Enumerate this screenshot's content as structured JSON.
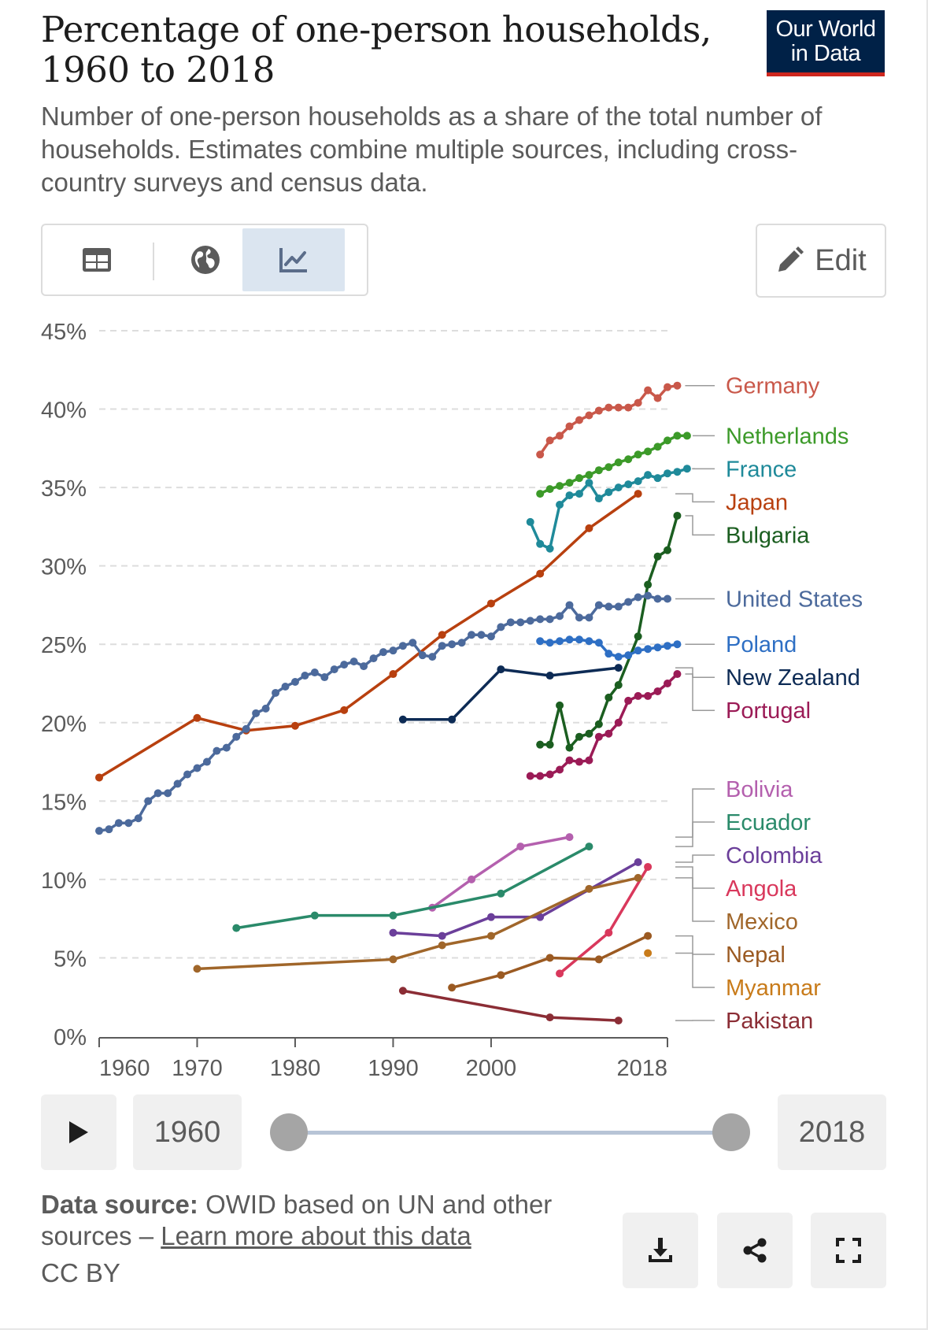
{
  "header": {
    "title": "Percentage of one-person households, 1960 to 2018",
    "subtitle": "Number of one-person households as a share of the total number of households. Estimates combine multiple sources, including cross-country surveys and census data.",
    "logo_line1": "Our World",
    "logo_line2": "in Data"
  },
  "toolbar": {
    "tabs": [
      {
        "name": "table",
        "icon": "table-icon",
        "active": false
      },
      {
        "name": "map",
        "icon": "globe-icon",
        "active": false
      },
      {
        "name": "chart",
        "icon": "line-chart-icon",
        "active": true
      }
    ],
    "edit_label": "Edit"
  },
  "timeline": {
    "start_label": "1960",
    "end_label": "2018",
    "start_year": 1960,
    "end_year": 2018
  },
  "footer": {
    "source_label": "Data source:",
    "source_text": "OWID based on UN and other sources –",
    "learn_more": "Learn more about this data",
    "license": "CC BY"
  },
  "colors": {
    "accent": "#dbe5f0",
    "logo_bg": "#002147",
    "logo_bar": "#ce261e",
    "grid": "#dddddd",
    "axis": "#5b5b5b"
  },
  "chart_data": {
    "type": "line",
    "title": "Percentage of one-person households, 1960 to 2018",
    "xlabel": "",
    "ylabel": "",
    "xlim": [
      1960,
      2018
    ],
    "ylim": [
      0,
      45
    ],
    "x_ticks": [
      1960,
      1970,
      1980,
      1990,
      2000,
      2018
    ],
    "y_ticks": [
      0,
      5,
      10,
      15,
      20,
      25,
      30,
      35,
      40,
      45
    ],
    "y_tick_labels": [
      "0%",
      "5%",
      "10%",
      "15%",
      "20%",
      "25%",
      "30%",
      "35%",
      "40%",
      "45%"
    ],
    "grid": true,
    "legend": "right, labels at line ends",
    "series": [
      {
        "name": "Germany",
        "color": "#c9584a",
        "points": [
          [
            2005,
            37.1
          ],
          [
            2006,
            38.0
          ],
          [
            2007,
            38.3
          ],
          [
            2008,
            38.9
          ],
          [
            2009,
            39.3
          ],
          [
            2010,
            39.6
          ],
          [
            2011,
            39.9
          ],
          [
            2012,
            40.1
          ],
          [
            2013,
            40.1
          ],
          [
            2014,
            40.1
          ],
          [
            2015,
            40.4
          ],
          [
            2016,
            41.2
          ],
          [
            2017,
            40.7
          ],
          [
            2018,
            41.4
          ],
          [
            2019,
            41.5
          ]
        ]
      },
      {
        "name": "Netherlands",
        "color": "#3c9a29",
        "points": [
          [
            2005,
            34.6
          ],
          [
            2006,
            34.9
          ],
          [
            2007,
            35.1
          ],
          [
            2008,
            35.3
          ],
          [
            2009,
            35.6
          ],
          [
            2010,
            35.8
          ],
          [
            2011,
            36.1
          ],
          [
            2012,
            36.3
          ],
          [
            2013,
            36.6
          ],
          [
            2014,
            36.8
          ],
          [
            2015,
            37.1
          ],
          [
            2016,
            37.3
          ],
          [
            2017,
            37.6
          ],
          [
            2018,
            38.0
          ],
          [
            2019,
            38.3
          ],
          [
            2020,
            38.3
          ]
        ]
      },
      {
        "name": "France",
        "color": "#1f8a9a",
        "points": [
          [
            2004,
            32.8
          ],
          [
            2005,
            31.4
          ],
          [
            2006,
            31.1
          ],
          [
            2007,
            33.9
          ],
          [
            2008,
            34.5
          ],
          [
            2009,
            34.6
          ],
          [
            2010,
            35.3
          ],
          [
            2011,
            34.3
          ],
          [
            2012,
            34.7
          ],
          [
            2013,
            35.0
          ],
          [
            2014,
            35.2
          ],
          [
            2015,
            35.4
          ],
          [
            2016,
            35.8
          ],
          [
            2017,
            35.6
          ],
          [
            2018,
            35.9
          ],
          [
            2019,
            36.0
          ],
          [
            2020,
            36.2
          ]
        ]
      },
      {
        "name": "Japan",
        "color": "#b8400f",
        "points": [
          [
            1960,
            16.5
          ],
          [
            1970,
            20.3
          ],
          [
            1975,
            19.5
          ],
          [
            1980,
            19.8
          ],
          [
            1985,
            20.8
          ],
          [
            1990,
            23.1
          ],
          [
            1995,
            25.6
          ],
          [
            2000,
            27.6
          ],
          [
            2005,
            29.5
          ],
          [
            2010,
            32.4
          ],
          [
            2015,
            34.6
          ]
        ]
      },
      {
        "name": "Bulgaria",
        "color": "#1b5e20",
        "points": [
          [
            2005,
            18.6
          ],
          [
            2006,
            18.6
          ],
          [
            2007,
            21.1
          ],
          [
            2008,
            18.4
          ],
          [
            2009,
            19.1
          ],
          [
            2010,
            19.3
          ],
          [
            2011,
            19.9
          ],
          [
            2012,
            21.6
          ],
          [
            2013,
            22.4
          ],
          [
            2015,
            25.5
          ],
          [
            2016,
            28.8
          ],
          [
            2017,
            30.6
          ],
          [
            2018,
            31.0
          ],
          [
            2019,
            33.2
          ]
        ]
      },
      {
        "name": "United States",
        "color": "#4c6a9c",
        "points": [
          [
            1960,
            13.1
          ],
          [
            1961,
            13.2
          ],
          [
            1962,
            13.6
          ],
          [
            1963,
            13.6
          ],
          [
            1964,
            13.9
          ],
          [
            1965,
            15.0
          ],
          [
            1966,
            15.5
          ],
          [
            1967,
            15.5
          ],
          [
            1968,
            16.1
          ],
          [
            1969,
            16.7
          ],
          [
            1970,
            17.1
          ],
          [
            1971,
            17.5
          ],
          [
            1972,
            18.2
          ],
          [
            1973,
            18.4
          ],
          [
            1974,
            19.1
          ],
          [
            1975,
            19.6
          ],
          [
            1976,
            20.6
          ],
          [
            1977,
            20.9
          ],
          [
            1978,
            21.9
          ],
          [
            1979,
            22.3
          ],
          [
            1980,
            22.6
          ],
          [
            1981,
            23.0
          ],
          [
            1982,
            23.2
          ],
          [
            1983,
            22.9
          ],
          [
            1984,
            23.4
          ],
          [
            1985,
            23.7
          ],
          [
            1986,
            23.9
          ],
          [
            1987,
            23.6
          ],
          [
            1988,
            24.1
          ],
          [
            1989,
            24.5
          ],
          [
            1990,
            24.6
          ],
          [
            1991,
            24.9
          ],
          [
            1992,
            25.1
          ],
          [
            1993,
            24.3
          ],
          [
            1994,
            24.2
          ],
          [
            1995,
            24.9
          ],
          [
            1996,
            25.0
          ],
          [
            1997,
            25.1
          ],
          [
            1998,
            25.6
          ],
          [
            1999,
            25.6
          ],
          [
            2000,
            25.5
          ],
          [
            2001,
            26.1
          ],
          [
            2002,
            26.4
          ],
          [
            2003,
            26.4
          ],
          [
            2004,
            26.5
          ],
          [
            2005,
            26.6
          ],
          [
            2006,
            26.6
          ],
          [
            2007,
            26.8
          ],
          [
            2008,
            27.5
          ],
          [
            2009,
            26.7
          ],
          [
            2010,
            26.7
          ],
          [
            2011,
            27.5
          ],
          [
            2012,
            27.4
          ],
          [
            2013,
            27.4
          ],
          [
            2014,
            27.7
          ],
          [
            2015,
            28.0
          ],
          [
            2016,
            28.1
          ],
          [
            2017,
            27.9
          ],
          [
            2018,
            27.9
          ]
        ]
      },
      {
        "name": "Poland",
        "color": "#2e6fc4",
        "points": [
          [
            2005,
            25.2
          ],
          [
            2006,
            25.1
          ],
          [
            2007,
            25.2
          ],
          [
            2008,
            25.3
          ],
          [
            2009,
            25.3
          ],
          [
            2010,
            25.2
          ],
          [
            2011,
            25.1
          ],
          [
            2012,
            24.4
          ],
          [
            2013,
            24.2
          ],
          [
            2014,
            24.3
          ],
          [
            2015,
            24.6
          ],
          [
            2016,
            24.7
          ],
          [
            2017,
            24.8
          ],
          [
            2018,
            24.9
          ],
          [
            2019,
            25.0
          ]
        ]
      },
      {
        "name": "New Zealand",
        "color": "#0d2b55",
        "points": [
          [
            1991,
            20.2
          ],
          [
            1996,
            20.2
          ],
          [
            2001,
            23.4
          ],
          [
            2006,
            23.0
          ],
          [
            2013,
            23.5
          ]
        ]
      },
      {
        "name": "Portugal",
        "color": "#9b1b56",
        "points": [
          [
            2004,
            16.6
          ],
          [
            2005,
            16.6
          ],
          [
            2006,
            16.7
          ],
          [
            2007,
            17.0
          ],
          [
            2008,
            17.6
          ],
          [
            2009,
            17.5
          ],
          [
            2010,
            17.6
          ],
          [
            2011,
            19.1
          ],
          [
            2012,
            19.3
          ],
          [
            2013,
            20.0
          ],
          [
            2014,
            21.4
          ],
          [
            2015,
            21.7
          ],
          [
            2016,
            21.7
          ],
          [
            2017,
            22.0
          ],
          [
            2018,
            22.5
          ],
          [
            2019,
            23.1
          ]
        ]
      },
      {
        "name": "Bolivia",
        "color": "#b460ae",
        "points": [
          [
            1994,
            8.2
          ],
          [
            1998,
            10.0
          ],
          [
            2003,
            12.1
          ],
          [
            2008,
            12.7
          ]
        ]
      },
      {
        "name": "Ecuador",
        "color": "#2a8a6a",
        "points": [
          [
            1974,
            6.9
          ],
          [
            1982,
            7.7
          ],
          [
            1990,
            7.7
          ],
          [
            2001,
            9.1
          ],
          [
            2010,
            12.1
          ]
        ]
      },
      {
        "name": "Colombia",
        "color": "#6b3f9a",
        "points": [
          [
            1990,
            6.6
          ],
          [
            1995,
            6.4
          ],
          [
            2000,
            7.6
          ],
          [
            2005,
            7.6
          ],
          [
            2015,
            11.1
          ]
        ]
      },
      {
        "name": "Angola",
        "color": "#d9385c",
        "points": [
          [
            2007,
            4.0
          ],
          [
            2012,
            6.6
          ],
          [
            2016,
            10.8
          ]
        ]
      },
      {
        "name": "Mexico",
        "color": "#a0662a",
        "points": [
          [
            1970,
            4.3
          ],
          [
            1990,
            4.9
          ],
          [
            1995,
            5.8
          ],
          [
            2000,
            6.4
          ],
          [
            2010,
            9.4
          ],
          [
            2015,
            10.1
          ]
        ]
      },
      {
        "name": "Nepal",
        "color": "#9b5a22",
        "points": [
          [
            1996,
            3.1
          ],
          [
            2001,
            3.9
          ],
          [
            2006,
            5.0
          ],
          [
            2011,
            4.9
          ],
          [
            2016,
            6.4
          ]
        ]
      },
      {
        "name": "Myanmar",
        "color": "#c87b1a",
        "points": [
          [
            2016,
            5.3
          ]
        ]
      },
      {
        "name": "Pakistan",
        "color": "#8b2d35",
        "points": [
          [
            1991,
            2.9
          ],
          [
            2006,
            1.2
          ],
          [
            2013,
            1.0
          ]
        ]
      }
    ]
  }
}
